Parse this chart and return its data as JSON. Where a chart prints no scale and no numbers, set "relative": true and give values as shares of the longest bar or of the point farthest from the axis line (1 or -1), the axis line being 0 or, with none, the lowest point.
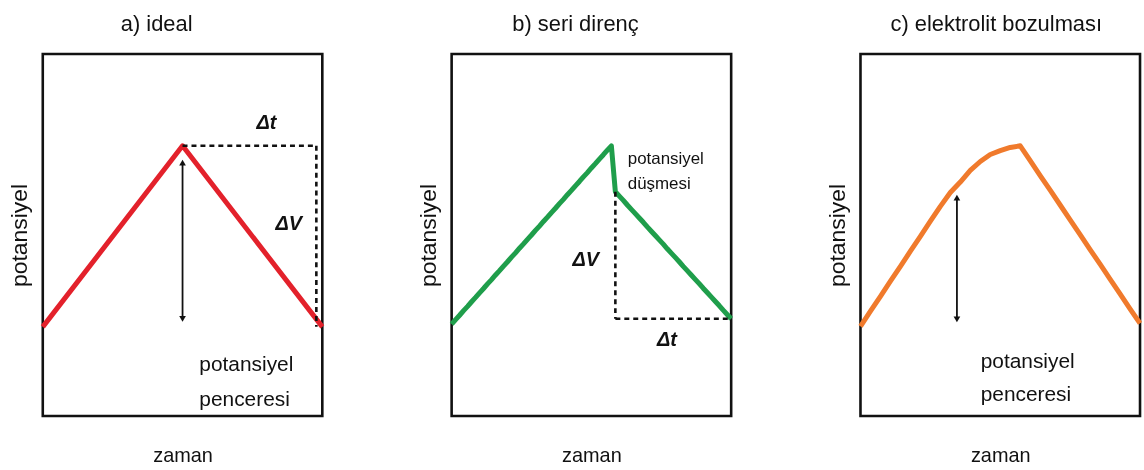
{
  "chart_data": [
    {
      "type": "line",
      "title": "a) ideal",
      "xlabel": "zaman",
      "ylabel": "potansiyel",
      "relative": true,
      "tick_labels": false,
      "categories": [
        null,
        null,
        null
      ],
      "series": [
        {
          "color": "#e3212b",
          "values": [
            0.33,
            1,
            0.33
          ]
        }
      ],
      "annotations": [
        "Δt",
        "ΔV",
        "potansiyel penceresi"
      ]
    },
    {
      "type": "line",
      "title": "b) seri direnç",
      "xlabel": "zaman",
      "ylabel": "potansiyel",
      "relative": true,
      "tick_labels": false,
      "categories": [
        null,
        null,
        null,
        null,
        null,
        null,
        null,
        null,
        null,
        null,
        null,
        null,
        null,
        null,
        null,
        null,
        null,
        null,
        null,
        null,
        null,
        null,
        null,
        null,
        null,
        null,
        null,
        null,
        null,
        null,
        null,
        null,
        null,
        null,
        null,
        null,
        null,
        null,
        null,
        null,
        null,
        null,
        null,
        null,
        null,
        null,
        null,
        null,
        null,
        null,
        null,
        null,
        null,
        null,
        null,
        null,
        null,
        null,
        null,
        null,
        null,
        null,
        null,
        null,
        null,
        null,
        null,
        null,
        null,
        null,
        null
      ],
      "series": [
        {
          "color": "#1f9e4b",
          "values": [
            0.34,
            0.357,
            0.373,
            0.39,
            0.406,
            0.423,
            0.439,
            0.456,
            0.472,
            0.489,
            0.505,
            0.522,
            0.538,
            0.555,
            0.571,
            0.588,
            0.604,
            0.621,
            0.637,
            0.654,
            0.67,
            0.687,
            0.703,
            0.72,
            0.736,
            0.753,
            0.769,
            0.786,
            0.802,
            0.819,
            0.835,
            0.852,
            0.868,
            0.885,
            0.901,
            0.918,
            0.934,
            0.951,
            0.967,
            0.984,
            1,
            0.83,
            0.814,
            0.798,
            0.781,
            0.765,
            0.749,
            0.733,
            0.717,
            0.7,
            0.684,
            0.668,
            0.652,
            0.636,
            0.619,
            0.603,
            0.587,
            0.571,
            0.554,
            0.538,
            0.522,
            0.506,
            0.49,
            0.473,
            0.457,
            0.441,
            0.425,
            0.409,
            0.392,
            0.376,
            0.36
          ]
        }
      ],
      "ref_lines": [
        {
          "axis": "y",
          "value": 0.36,
          "color": "#111111",
          "line_style": "dashed"
        }
      ],
      "annotations": [
        "potansiyel düşmesi",
        "ΔV",
        "Δt"
      ]
    },
    {
      "type": "line",
      "title": "c) elektrolit bozulması",
      "xlabel": "zaman",
      "ylabel": "potansiyel",
      "relative": true,
      "tick_labels": false,
      "categories": [
        null,
        null,
        null,
        null,
        null,
        null,
        null,
        null,
        null,
        null,
        null,
        null,
        null,
        null,
        null,
        null,
        null,
        null,
        null,
        null,
        null,
        null,
        null,
        null,
        null,
        null,
        null,
        null,
        null
      ],
      "series": [
        {
          "color": "#f07a2c",
          "values": [
            0.332,
            0.388,
            0.443,
            0.499,
            0.554,
            0.61,
            0.665,
            0.721,
            0.776,
            0.827,
            0.866,
            0.909,
            0.942,
            0.968,
            0.982,
            0.994,
            1,
            0.945,
            0.89,
            0.836,
            0.781,
            0.726,
            0.671,
            0.616,
            0.562,
            0.507,
            0.452,
            0.397,
            0.343
          ]
        }
      ],
      "annotations": [
        "potansiyel penceresi"
      ]
    }
  ]
}
